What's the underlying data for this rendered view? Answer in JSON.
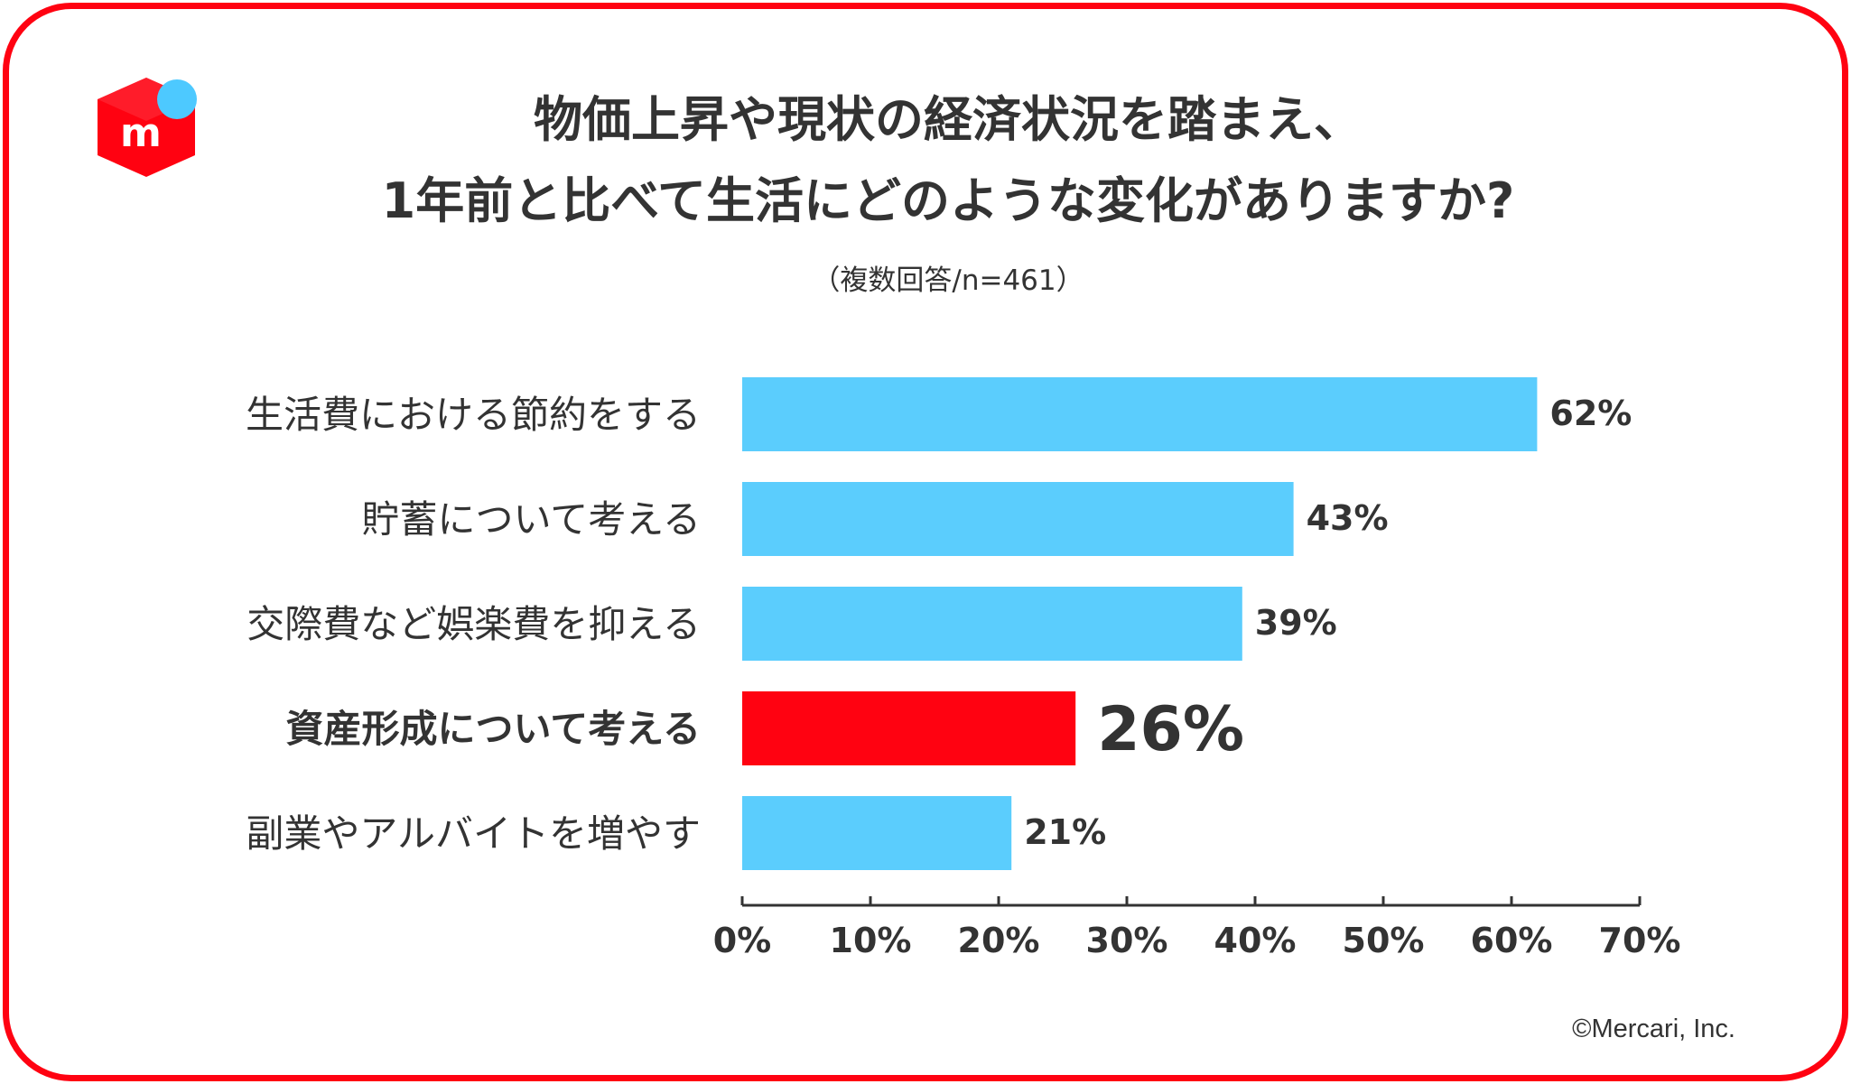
{
  "header": {
    "title_line1": "物価上昇や現状の経済状況を踏まえ、",
    "title_line2": "1年前と比べて生活にどのような変化がありますか?",
    "subtitle": "（複数回答/n=461）"
  },
  "footer": {
    "copyright": "©Mercari, Inc."
  },
  "logo": {
    "icon": "mercari-box-logo-icon",
    "letter": "m",
    "box_color": "#ff0211",
    "dot_color": "#4dc9ff"
  },
  "colors": {
    "frame": "#ff0211",
    "bar": "#5bcdfd",
    "highlight": "#ff0211",
    "text": "#333333"
  },
  "chart_data": {
    "type": "bar",
    "orientation": "horizontal",
    "categories": [
      "生活費における節約をする",
      "貯蓄について考える",
      "交際費など娯楽費を抑える",
      "資産形成について考える",
      "副業やアルバイトを増やす"
    ],
    "values": [
      62,
      43,
      39,
      26,
      21
    ],
    "value_labels": [
      "62%",
      "43%",
      "39%",
      "26%",
      "21%"
    ],
    "highlight_index": 3,
    "xlim": [
      0,
      70
    ],
    "xticks": [
      0,
      10,
      20,
      30,
      40,
      50,
      60,
      70
    ],
    "xtick_labels": [
      "0%",
      "10%",
      "20%",
      "30%",
      "40%",
      "50%",
      "60%",
      "70%"
    ],
    "grid": false
  }
}
